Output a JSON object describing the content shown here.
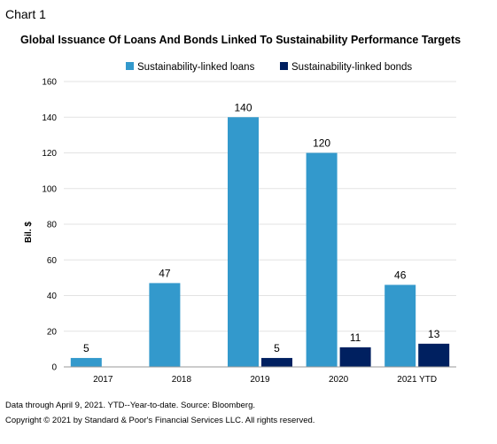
{
  "page": {
    "label": "Chart 1",
    "footnote": "Data through April 9, 2021. YTD--Year-to-date. Source: Bloomberg.",
    "copyright": "Copyright © 2021 by Standard & Poor's Financial Services LLC. All rights reserved."
  },
  "chart_data": {
    "type": "bar",
    "title": "Global Issuance Of Loans And Bonds Linked To Sustainability Performance Targets",
    "ylabel": "Bil. $",
    "xlabel": "",
    "categories": [
      "2017",
      "2018",
      "2019",
      "2020",
      "2021 YTD"
    ],
    "series": [
      {
        "name": "Sustainability-linked loans",
        "color": "#3399CC",
        "values": [
          5,
          47,
          140,
          120,
          46
        ],
        "labels": [
          "5",
          "47",
          "140",
          "120",
          "46"
        ]
      },
      {
        "name": "Sustainability-linked bonds",
        "color": "#002060",
        "values": [
          0,
          0,
          5,
          11,
          13
        ],
        "labels": [
          "",
          "",
          "5",
          "11",
          "13"
        ]
      }
    ],
    "ylim": [
      0,
      160
    ],
    "yticks": [
      0,
      20,
      40,
      60,
      80,
      100,
      120,
      140,
      160
    ],
    "grid": true,
    "legend_position": "top"
  }
}
